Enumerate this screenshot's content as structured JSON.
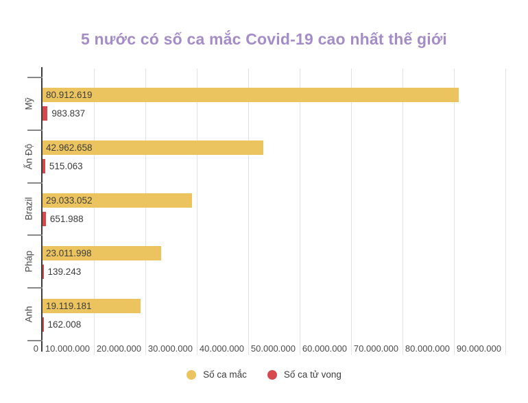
{
  "title": "5 nước có số ca mắc Covid-19 cao nhất thế giới",
  "colors": {
    "title": "#a48cc9",
    "cases": "#ecc45f",
    "deaths": "#d5494e",
    "grid": "#e3e3e3",
    "axis": "#3c3c3c",
    "bracket": "#878787"
  },
  "chart_data": {
    "type": "bar",
    "orientation": "horizontal",
    "title": "5 nước có số ca mắc Covid-19 cao nhất thế giới",
    "categories": [
      "Mỹ",
      "Ấn Độ",
      "Brazil",
      "Pháp",
      "Anh"
    ],
    "series": [
      {
        "name": "Số ca mắc",
        "color": "#ecc45f",
        "values": [
          80912619,
          42962658,
          29033052,
          23011998,
          19119181
        ],
        "labels": [
          "80.912.619",
          "42.962.658",
          "29.033.052",
          "23.011.998",
          "19.119.181"
        ]
      },
      {
        "name": "Số ca tử vong",
        "color": "#d5494e",
        "values": [
          983837,
          515063,
          651988,
          139243,
          162008
        ],
        "labels": [
          "983.837",
          "515.063",
          "651.988",
          "139.243",
          "162.008"
        ]
      }
    ],
    "x_ticks": {
      "values": [
        0,
        10000000,
        20000000,
        30000000,
        40000000,
        50000000,
        60000000,
        70000000,
        80000000,
        90000000
      ],
      "labels": [
        "0",
        "10.000.000",
        "20.000.000",
        "30.000.000",
        "40.000.000",
        "50.000.000",
        "60.000.000",
        "70.000.000",
        "80.000.000",
        "90.000.000"
      ]
    },
    "xlim": [
      0,
      90000000
    ],
    "grid": "vertical",
    "legend_position": "bottom"
  },
  "legend": {
    "items": [
      {
        "label": "Số ca mắc",
        "color": "#ecc45f"
      },
      {
        "label": "Số ca tử vong",
        "color": "#d5494e"
      }
    ]
  }
}
